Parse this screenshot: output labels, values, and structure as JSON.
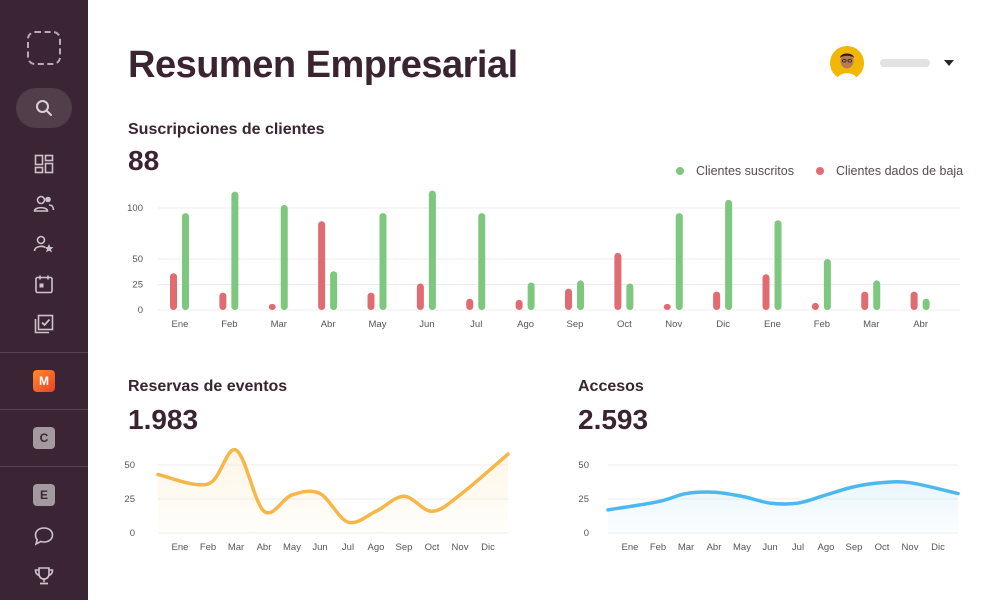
{
  "page": {
    "title": "Resumen Empresarial"
  },
  "sidebar": {
    "items": [
      {
        "name": "logo-placeholder",
        "kind": "logo"
      },
      {
        "name": "search-icon",
        "kind": "search"
      },
      {
        "name": "dashboard-icon",
        "kind": "dashboard"
      },
      {
        "name": "users-icon",
        "kind": "users"
      },
      {
        "name": "user-star-icon",
        "kind": "userstar"
      },
      {
        "name": "calendar-icon",
        "kind": "calendar"
      },
      {
        "name": "checklist-icon",
        "kind": "checklist"
      }
    ],
    "badges": [
      {
        "letter": "M",
        "color": "#f2632a"
      },
      {
        "letter": "C",
        "color": "#a39aa0"
      },
      {
        "letter": "E",
        "color": "#a39aa0"
      }
    ],
    "bottom_icons": [
      "chat-icon",
      "trophy-icon"
    ]
  },
  "header": {
    "user_name": "",
    "avatar_color": "#f2b705"
  },
  "subscriptions": {
    "title": "Suscripciones de clientes",
    "value": "88",
    "legend": {
      "subscribed": "Clientes suscritos",
      "unsubscribed": "Clientes dados de baja"
    }
  },
  "bookings": {
    "title": "Reservas de eventos",
    "value": "1.983"
  },
  "access": {
    "title": "Accesos",
    "value": "2.593"
  },
  "colors": {
    "green": "#7dc77f",
    "red": "#e06c72",
    "orange": "#f7b648",
    "blue": "#4db8ef",
    "sidebar": "#3b2534"
  },
  "chart_data": [
    {
      "type": "bar",
      "title": "Suscripciones de clientes",
      "categories": [
        "Ene",
        "Feb",
        "Mar",
        "Abr",
        "May",
        "Jun",
        "Jul",
        "Ago",
        "Sep",
        "Oct",
        "Nov",
        "Dic",
        "Ene",
        "Feb",
        "Mar",
        "Abr"
      ],
      "series": [
        {
          "name": "Clientes dados de baja",
          "values": [
            36,
            17,
            6,
            87,
            17,
            26,
            11,
            10,
            21,
            56,
            6,
            18,
            35,
            7,
            18,
            18
          ]
        },
        {
          "name": "Clientes suscritos",
          "values": [
            95,
            116,
            103,
            38,
            95,
            117,
            95,
            27,
            29,
            26,
            95,
            108,
            88,
            50,
            29,
            11
          ]
        }
      ],
      "yticks": [
        0,
        25,
        50,
        100
      ],
      "ylim": [
        0,
        120
      ],
      "grid": true,
      "legend_position": "top-right"
    },
    {
      "type": "area",
      "title": "Reservas de eventos",
      "categories": [
        "Ene",
        "Feb",
        "Mar",
        "Abr",
        "May",
        "Jun",
        "Jul",
        "Ago",
        "Sep",
        "Oct",
        "Nov",
        "Dic"
      ],
      "series": [
        {
          "values": [
            43,
            36,
            61,
            16,
            28,
            29,
            8,
            16,
            27,
            16,
            28,
            58
          ]
        }
      ],
      "yticks": [
        0,
        25,
        50
      ],
      "ylim": [
        0,
        50
      ],
      "grid": true
    },
    {
      "type": "area",
      "title": "Accesos",
      "categories": [
        "Ene",
        "Feb",
        "Mar",
        "Abr",
        "May",
        "Jun",
        "Jul",
        "Ago",
        "Sep",
        "Oct",
        "Nov",
        "Dic"
      ],
      "series": [
        {
          "values": [
            17,
            23,
            29,
            30,
            27,
            22,
            22,
            28,
            34,
            37,
            37,
            29
          ]
        }
      ],
      "yticks": [
        0,
        25,
        50
      ],
      "ylim": [
        0,
        50
      ],
      "grid": true
    }
  ]
}
